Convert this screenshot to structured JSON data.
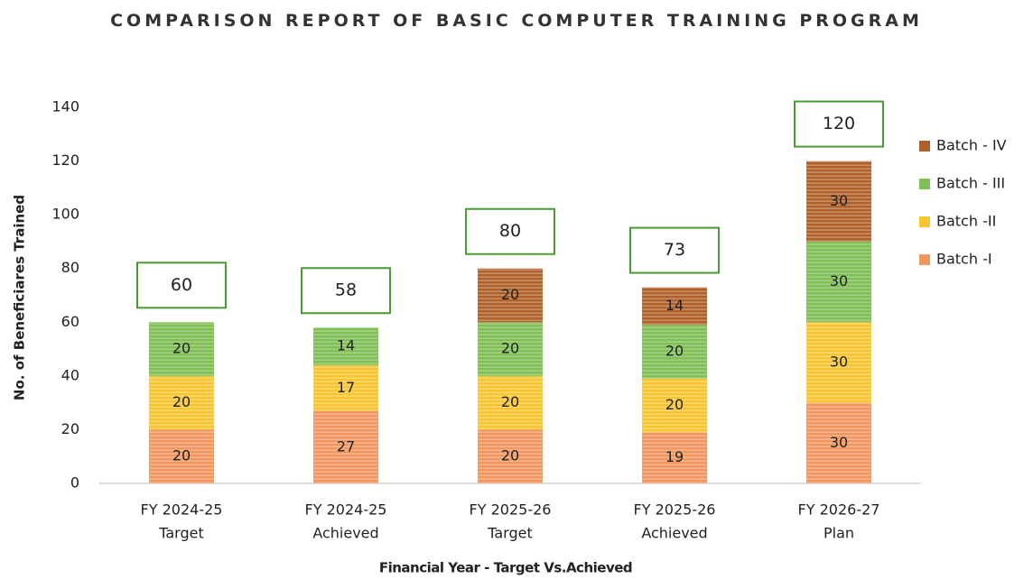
{
  "chart_data": {
    "type": "stacked_bar",
    "title": "COMPARISON  REPORT OF BASIC COMPUTER TRAINING PROGRAM",
    "x_label": "Financial Year - Target Vs.Achieved",
    "y_label": "No. of Beneficiares Trained",
    "categories": [
      [
        "FY 2024-25",
        "Target"
      ],
      [
        "FY 2024-25",
        "Achieved"
      ],
      [
        "FY 2025-26",
        "Target"
      ],
      [
        "FY 2025-26",
        "Achieved"
      ],
      [
        "FY 2026-27",
        "Plan"
      ]
    ],
    "series": [
      {
        "name": "Batch -I",
        "color": "#f0965f",
        "values": [
          20,
          27,
          20,
          19,
          30
        ]
      },
      {
        "name": "Batch -II",
        "color": "#f7c530",
        "values": [
          20,
          17,
          20,
          20,
          30
        ]
      },
      {
        "name": "Batch - III",
        "color": "#7fbf55",
        "values": [
          20,
          14,
          20,
          20,
          30
        ]
      },
      {
        "name": "Batch - IV",
        "color": "#b0602a",
        "values": [
          null,
          null,
          20,
          14,
          30
        ]
      }
    ],
    "totals": [
      60,
      58,
      80,
      73,
      120
    ],
    "ylim": [
      0,
      140
    ],
    "yticks": [
      0,
      20,
      40,
      60,
      80,
      100,
      120,
      140
    ],
    "grid": false,
    "legend": "right"
  }
}
